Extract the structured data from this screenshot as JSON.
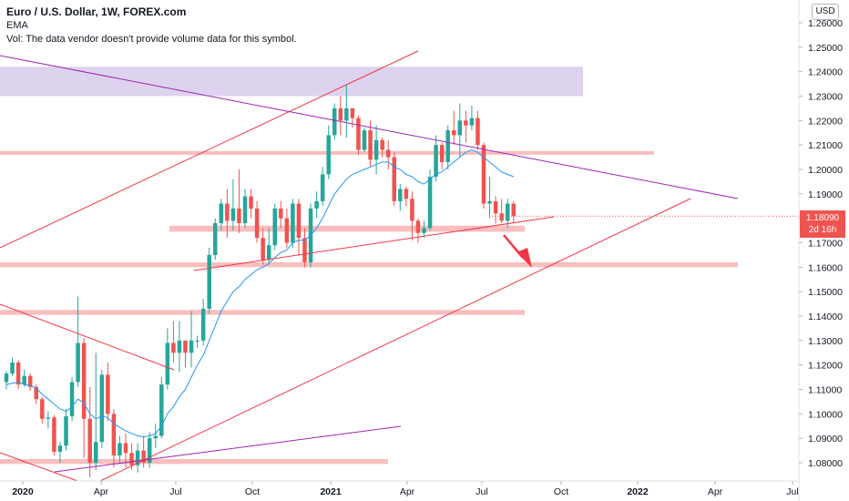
{
  "legend": {
    "title": "Euro / U.S. Dollar, 1W, FOREX.com",
    "indicator": "EMA",
    "volume_note": "Vol: The data vendor doesn't provide volume data for this symbol."
  },
  "currency_badge": "USD",
  "last_price": {
    "value": "1.18090",
    "countdown": "2d 16h"
  },
  "colors": {
    "up": "#26a69a",
    "down": "#ef5350",
    "ema": "#2196f3",
    "zone_red": "#f8a8a8",
    "zone_purple": "#d1c4e9",
    "trend_red": "#f23645",
    "trend_purple": "#9c27b0"
  },
  "chart_data": {
    "type": "candlestick",
    "x_ticks": [
      "2020",
      "Apr",
      "Jul",
      "Oct",
      "2021",
      "Apr",
      "Jul",
      "Oct",
      "2022",
      "Apr",
      "Jul"
    ],
    "y_ticks": [
      "1.08000",
      "1.09000",
      "1.10000",
      "1.11000",
      "1.12000",
      "1.13000",
      "1.14000",
      "1.15000",
      "1.16000",
      "1.17000",
      "1.18000",
      "1.19000",
      "1.20000",
      "1.21000",
      "1.22000",
      "1.23000",
      "1.24000",
      "1.25000",
      "1.26000"
    ],
    "ylim": [
      1.0745,
      1.2645
    ],
    "candles": [
      [
        1.113,
        1.1165,
        1.11,
        1.1175
      ],
      [
        1.1165,
        1.121,
        1.1155,
        1.123
      ],
      [
        1.121,
        1.112,
        1.11,
        1.122
      ],
      [
        1.112,
        1.1155,
        1.111,
        1.118
      ],
      [
        1.1155,
        1.111,
        1.1095,
        1.1165
      ],
      [
        1.111,
        1.106,
        1.104,
        1.112
      ],
      [
        1.106,
        1.098,
        1.096,
        1.107
      ],
      [
        1.098,
        1.0985,
        1.094,
        1.101
      ],
      [
        1.0985,
        1.0845,
        1.083,
        1.0995
      ],
      [
        1.0845,
        1.087,
        1.08,
        1.0885
      ],
      [
        1.087,
        1.099,
        1.085,
        1.102
      ],
      [
        1.099,
        1.113,
        1.097,
        1.115
      ],
      [
        1.113,
        1.129,
        1.111,
        1.148
      ],
      [
        1.129,
        1.098,
        1.082,
        1.131
      ],
      [
        1.098,
        1.08,
        1.074,
        1.111
      ],
      [
        1.08,
        1.0885,
        1.077,
        1.125
      ],
      [
        1.0885,
        1.116,
        1.086,
        1.118
      ],
      [
        1.116,
        1.1,
        1.097,
        1.121
      ],
      [
        1.1,
        1.083,
        1.078,
        1.102
      ],
      [
        1.083,
        1.088,
        1.08,
        1.091
      ],
      [
        1.088,
        1.084,
        1.078,
        1.092
      ],
      [
        1.084,
        1.079,
        1.077,
        1.088
      ],
      [
        1.079,
        1.085,
        1.076,
        1.088
      ],
      [
        1.085,
        1.08,
        1.078,
        1.091
      ],
      [
        1.08,
        1.09,
        1.078,
        1.0925
      ],
      [
        1.09,
        1.091,
        1.086,
        1.096
      ],
      [
        1.091,
        1.112,
        1.09,
        1.115
      ],
      [
        1.112,
        1.129,
        1.11,
        1.135
      ],
      [
        1.129,
        1.125,
        1.121,
        1.138
      ],
      [
        1.125,
        1.13,
        1.117,
        1.138
      ],
      [
        1.13,
        1.125,
        1.119,
        1.13
      ],
      [
        1.125,
        1.13,
        1.119,
        1.142
      ],
      [
        1.13,
        1.13,
        1.127,
        1.132
      ],
      [
        1.13,
        1.143,
        1.128,
        1.147
      ],
      [
        1.143,
        1.165,
        1.141,
        1.168
      ],
      [
        1.165,
        1.178,
        1.163,
        1.18
      ],
      [
        1.178,
        1.186,
        1.175,
        1.188
      ],
      [
        1.186,
        1.179,
        1.172,
        1.192
      ],
      [
        1.179,
        1.184,
        1.175,
        1.196
      ],
      [
        1.184,
        1.178,
        1.174,
        1.2
      ],
      [
        1.178,
        1.189,
        1.176,
        1.192
      ],
      [
        1.189,
        1.184,
        1.18,
        1.192
      ],
      [
        1.184,
        1.172,
        1.17,
        1.187
      ],
      [
        1.172,
        1.163,
        1.161,
        1.176
      ],
      [
        1.163,
        1.169,
        1.161,
        1.176
      ],
      [
        1.169,
        1.184,
        1.167,
        1.186
      ],
      [
        1.184,
        1.18,
        1.176,
        1.187
      ],
      [
        1.18,
        1.17,
        1.168,
        1.184
      ],
      [
        1.17,
        1.186,
        1.168,
        1.188
      ],
      [
        1.186,
        1.172,
        1.165,
        1.188
      ],
      [
        1.172,
        1.162,
        1.16,
        1.176
      ],
      [
        1.162,
        1.184,
        1.16,
        1.186
      ],
      [
        1.184,
        1.187,
        1.18,
        1.191
      ],
      [
        1.187,
        1.198,
        1.185,
        1.201
      ],
      [
        1.198,
        1.214,
        1.196,
        1.218
      ],
      [
        1.214,
        1.225,
        1.212,
        1.227
      ],
      [
        1.225,
        1.22,
        1.214,
        1.23
      ],
      [
        1.22,
        1.225,
        1.213,
        1.235
      ],
      [
        1.225,
        1.221,
        1.217,
        1.225
      ],
      [
        1.221,
        1.208,
        1.206,
        1.222
      ],
      [
        1.208,
        1.216,
        1.207,
        1.217
      ],
      [
        1.216,
        1.204,
        1.201,
        1.22
      ],
      [
        1.204,
        1.212,
        1.198,
        1.218
      ],
      [
        1.212,
        1.208,
        1.205,
        1.213
      ],
      [
        1.208,
        1.205,
        1.2,
        1.212
      ],
      [
        1.205,
        1.187,
        1.185,
        1.207
      ],
      [
        1.187,
        1.192,
        1.183,
        1.194
      ],
      [
        1.192,
        1.188,
        1.185,
        1.193
      ],
      [
        1.188,
        1.179,
        1.171,
        1.191
      ],
      [
        1.179,
        1.174,
        1.17,
        1.18
      ],
      [
        1.174,
        1.176,
        1.172,
        1.179
      ],
      [
        1.176,
        1.197,
        1.175,
        1.2
      ],
      [
        1.197,
        1.21,
        1.195,
        1.214
      ],
      [
        1.21,
        1.203,
        1.2,
        1.211
      ],
      [
        1.203,
        1.216,
        1.2,
        1.218
      ],
      [
        1.216,
        1.214,
        1.21,
        1.224
      ],
      [
        1.214,
        1.22,
        1.205,
        1.227
      ],
      [
        1.22,
        1.218,
        1.211,
        1.224
      ],
      [
        1.218,
        1.221,
        1.216,
        1.226
      ],
      [
        1.221,
        1.21,
        1.208,
        1.224
      ],
      [
        1.21,
        1.186,
        1.184,
        1.211
      ],
      [
        1.186,
        1.187,
        1.18,
        1.197
      ],
      [
        1.187,
        1.182,
        1.178,
        1.189
      ],
      [
        1.182,
        1.179,
        1.178,
        1.188
      ],
      [
        1.179,
        1.186,
        1.176,
        1.188
      ],
      [
        1.186,
        1.1809,
        1.178,
        1.187
      ]
    ],
    "ema": [
      1.112,
      1.1125,
      1.113,
      1.112,
      1.1115,
      1.1105,
      1.108,
      1.106,
      1.104,
      1.102,
      1.101,
      1.103,
      1.106,
      1.1045,
      1.1,
      1.098,
      1.099,
      1.0985,
      1.096,
      1.0945,
      1.093,
      1.092,
      1.091,
      1.0905,
      1.091,
      1.092,
      1.095,
      1.1,
      1.103,
      1.107,
      1.11,
      1.115,
      1.12,
      1.124,
      1.13,
      1.136,
      1.142,
      1.146,
      1.15,
      1.152,
      1.155,
      1.157,
      1.159,
      1.16,
      1.1615,
      1.164,
      1.166,
      1.167,
      1.17,
      1.171,
      1.171,
      1.173,
      1.176,
      1.18,
      1.185,
      1.19,
      1.193,
      1.196,
      1.198,
      1.199,
      1.2,
      1.201,
      1.202,
      1.203,
      1.203,
      1.201,
      1.2,
      1.198,
      1.197,
      1.195,
      1.194,
      1.196,
      1.198,
      1.199,
      1.201,
      1.203,
      1.205,
      1.207,
      1.208,
      1.207,
      1.205,
      1.203,
      1.201,
      1.199,
      1.198,
      1.197
    ]
  }
}
